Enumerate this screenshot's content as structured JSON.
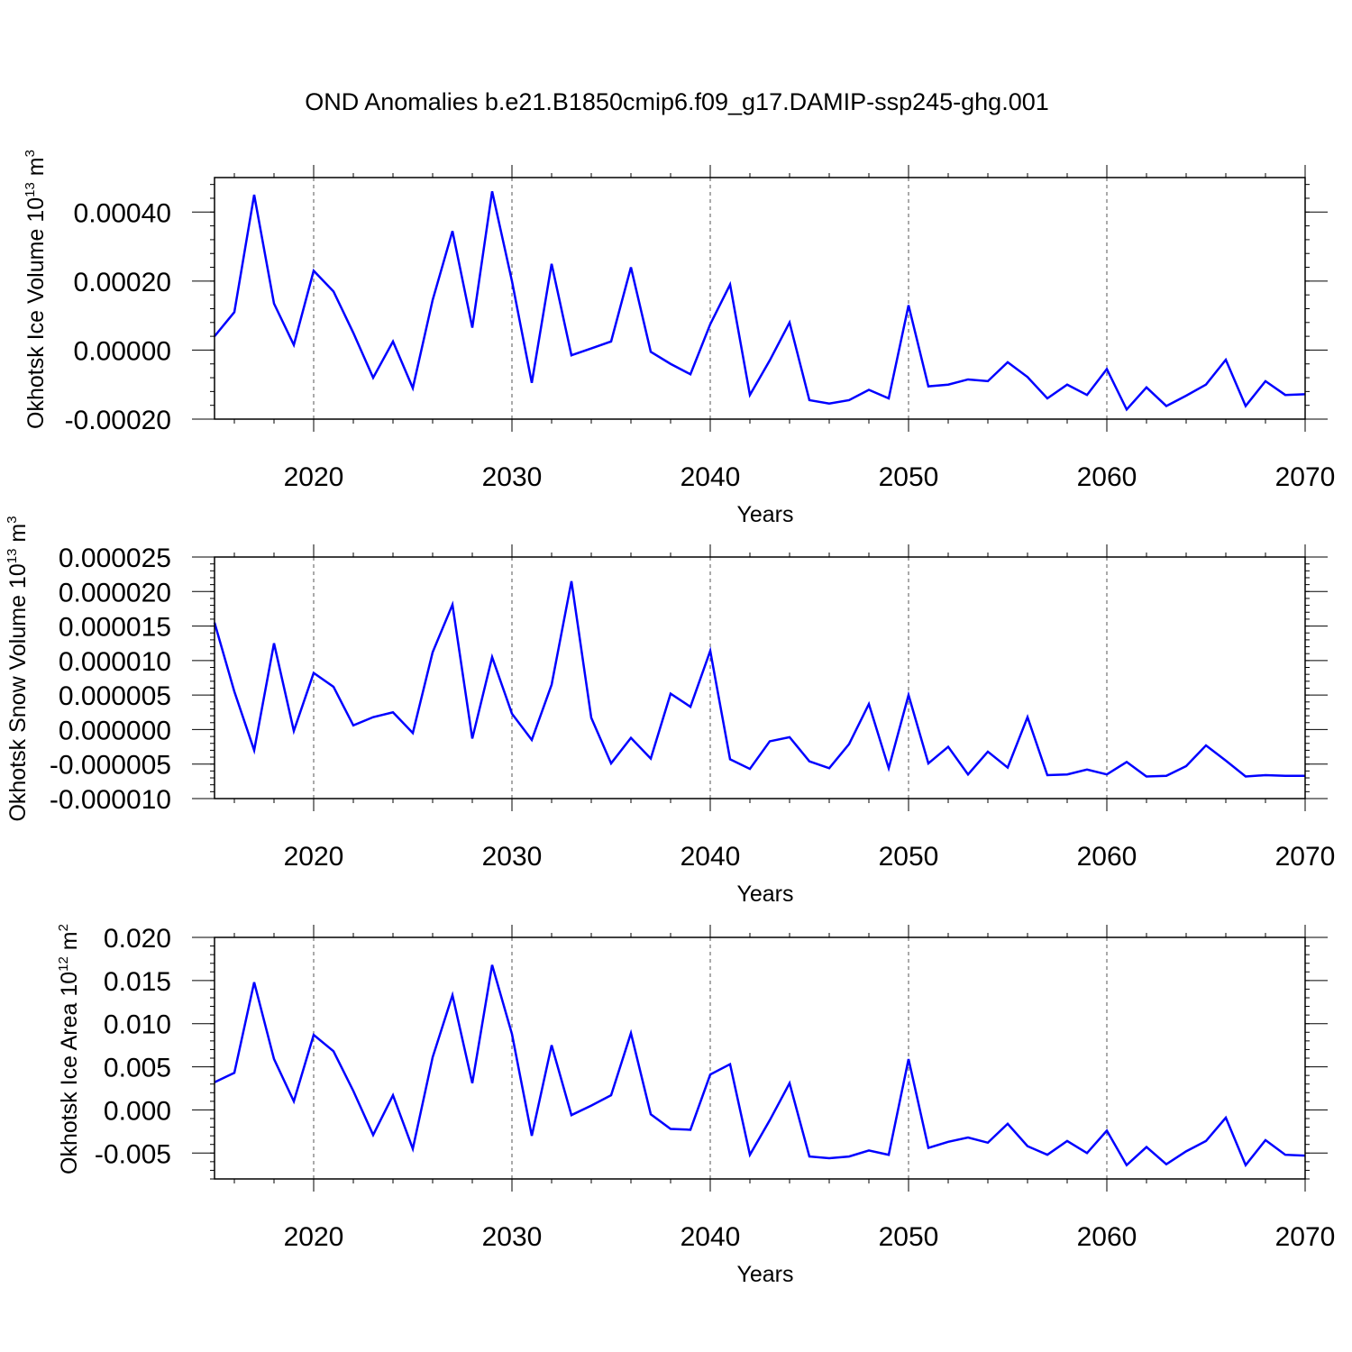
{
  "title": "OND Anomalies b.e21.B1850cmip6.f09_g17.DAMIP-ssp245-ghg.001",
  "colors": {
    "series": "#0000ff",
    "grid": "#555555"
  },
  "chart_data": [
    {
      "type": "line",
      "title": "",
      "xlabel": "Years",
      "ylabel": "Okhotsk Ice Volume 10",
      "ylabel_exp": "13",
      "ylabel_unit": " m",
      "ylabel_unit_exp": "3",
      "xlim": [
        2015,
        2070
      ],
      "ylim": [
        -0.0002,
        0.0005
      ],
      "x_ticks": [
        2020,
        2030,
        2040,
        2050,
        2060,
        2070
      ],
      "x_tick_labels": [
        "2020",
        "2030",
        "2040",
        "2050",
        "2060",
        "2070"
      ],
      "y_ticks": [
        -0.0002,
        0.0,
        0.0002,
        0.0004
      ],
      "y_tick_labels": [
        "-0.00020",
        "0.00000",
        "0.00020",
        "0.00040"
      ],
      "grid": "vertical dashed at major x ticks",
      "series": [
        {
          "name": "Okhotsk Ice Volume",
          "x": [
            2015,
            2016,
            2017,
            2018,
            2019,
            2020,
            2021,
            2022,
            2023,
            2024,
            2025,
            2026,
            2027,
            2028,
            2029,
            2030,
            2031,
            2032,
            2033,
            2034,
            2035,
            2036,
            2037,
            2038,
            2039,
            2040,
            2041,
            2042,
            2043,
            2044,
            2045,
            2046,
            2047,
            2048,
            2049,
            2050,
            2051,
            2052,
            2053,
            2054,
            2055,
            2056,
            2057,
            2058,
            2059,
            2060,
            2061,
            2062,
            2063,
            2064,
            2065,
            2066,
            2067,
            2068,
            2069,
            2070
          ],
          "values": [
            4e-05,
            0.00011,
            0.00045,
            0.000135,
            1.5e-05,
            0.00023,
            0.00017,
            5e-05,
            -8e-05,
            2.5e-05,
            -0.00011,
            0.000145,
            0.000345,
            6.5e-05,
            0.00046,
            0.0002,
            -9.5e-05,
            0.00025,
            -1.5e-05,
            5e-06,
            2.5e-05,
            0.00024,
            -5e-06,
            -4e-05,
            -7e-05,
            7.5e-05,
            0.00019,
            -0.00013,
            -3e-05,
            8e-05,
            -0.000145,
            -0.000155,
            -0.000145,
            -0.000115,
            -0.00014,
            0.00013,
            -0.000105,
            -0.0001,
            -8.5e-05,
            -9e-05,
            -3.5e-05,
            -7.8e-05,
            -0.00014,
            -0.0001,
            -0.00013,
            -5.5e-05,
            -0.000172,
            -0.000108,
            -0.000162,
            -0.000132,
            -0.0001,
            -2.8e-05,
            -0.000162,
            -9e-05,
            -0.00013,
            -0.000128
          ]
        }
      ]
    },
    {
      "type": "line",
      "title": "",
      "xlabel": "Years",
      "ylabel": "Okhotsk Snow Volume 10",
      "ylabel_exp": "13",
      "ylabel_unit": " m",
      "ylabel_unit_exp": "3",
      "xlim": [
        2015,
        2070
      ],
      "ylim": [
        -1e-05,
        2.5e-05
      ],
      "x_ticks": [
        2020,
        2030,
        2040,
        2050,
        2060,
        2070
      ],
      "x_tick_labels": [
        "2020",
        "2030",
        "2040",
        "2050",
        "2060",
        "2070"
      ],
      "y_ticks": [
        -1e-05,
        -5e-06,
        0.0,
        5e-06,
        1e-05,
        1.5e-05,
        2e-05,
        2.5e-05
      ],
      "y_tick_labels": [
        "-0.000010",
        "-0.000005",
        "0.000000",
        "0.000005",
        "0.000010",
        "0.000015",
        "0.000020",
        "0.000025"
      ],
      "grid": "vertical dashed at major x ticks",
      "series": [
        {
          "name": "Okhotsk Snow Volume",
          "x": [
            2015,
            2016,
            2017,
            2018,
            2019,
            2020,
            2021,
            2022,
            2023,
            2024,
            2025,
            2026,
            2027,
            2028,
            2029,
            2030,
            2031,
            2032,
            2033,
            2034,
            2035,
            2036,
            2037,
            2038,
            2039,
            2040,
            2041,
            2042,
            2043,
            2044,
            2045,
            2046,
            2047,
            2048,
            2049,
            2050,
            2051,
            2052,
            2053,
            2054,
            2055,
            2056,
            2057,
            2058,
            2059,
            2060,
            2061,
            2062,
            2063,
            2064,
            2065,
            2066,
            2067,
            2068,
            2069,
            2070
          ],
          "values": [
            1.55e-05,
            5.5e-06,
            -3e-06,
            1.25e-05,
            -2e-07,
            8.2e-06,
            6.2e-06,
            6e-07,
            1.8e-06,
            2.5e-06,
            -5e-07,
            1.12e-05,
            1.81e-05,
            -1.3e-06,
            1.05e-05,
            2.3e-06,
            -1.5e-06,
            6.5e-06,
            2.15e-05,
            1.7e-06,
            -4.9e-06,
            -1.2e-06,
            -4.2e-06,
            5.2e-06,
            3.3e-06,
            1.14e-05,
            -4.3e-06,
            -5.7e-06,
            -1.7e-06,
            -1.1e-06,
            -4.6e-06,
            -5.6e-06,
            -2.1e-06,
            3.7e-06,
            -5.6e-06,
            5e-06,
            -4.9e-06,
            -2.5e-06,
            -6.5e-06,
            -3.2e-06,
            -5.5e-06,
            1.8e-06,
            -6.6e-06,
            -6.5e-06,
            -5.8e-06,
            -6.5e-06,
            -4.7e-06,
            -6.8e-06,
            -6.7e-06,
            -5.3e-06,
            -2.3e-06,
            -4.5e-06,
            -6.8e-06,
            -6.6e-06,
            -6.7e-06,
            -6.7e-06
          ]
        }
      ]
    },
    {
      "type": "line",
      "title": "",
      "xlabel": "Years",
      "ylabel": "Okhotsk Ice Area 10",
      "ylabel_exp": "12",
      "ylabel_unit": " m",
      "ylabel_unit_exp": "2",
      "xlim": [
        2015,
        2070
      ],
      "ylim": [
        -0.008,
        0.02
      ],
      "x_ticks": [
        2020,
        2030,
        2040,
        2050,
        2060,
        2070
      ],
      "x_tick_labels": [
        "2020",
        "2030",
        "2040",
        "2050",
        "2060",
        "2070"
      ],
      "y_ticks": [
        -0.005,
        0.0,
        0.005,
        0.01,
        0.015,
        0.02
      ],
      "y_tick_labels": [
        "-0.005",
        "0.000",
        "0.005",
        "0.010",
        "0.015",
        "0.020"
      ],
      "grid": "vertical dashed at major x ticks",
      "series": [
        {
          "name": "Okhotsk Ice Area",
          "x": [
            2015,
            2016,
            2017,
            2018,
            2019,
            2020,
            2021,
            2022,
            2023,
            2024,
            2025,
            2026,
            2027,
            2028,
            2029,
            2030,
            2031,
            2032,
            2033,
            2034,
            2035,
            2036,
            2037,
            2038,
            2039,
            2040,
            2041,
            2042,
            2043,
            2044,
            2045,
            2046,
            2047,
            2048,
            2049,
            2050,
            2051,
            2052,
            2053,
            2054,
            2055,
            2056,
            2057,
            2058,
            2059,
            2060,
            2061,
            2062,
            2063,
            2064,
            2065,
            2066,
            2067,
            2068,
            2069,
            2070
          ],
          "values": [
            0.0032,
            0.0043,
            0.0148,
            0.0059,
            0.001,
            0.0087,
            0.0068,
            0.0022,
            -0.0029,
            0.0017,
            -0.0045,
            0.0061,
            0.0133,
            0.0031,
            0.0168,
            0.0088,
            -0.003,
            0.0075,
            -0.0006,
            0.0005,
            0.0017,
            0.0089,
            -0.0005,
            -0.0022,
            -0.0023,
            0.0041,
            0.0053,
            -0.0052,
            -0.0012,
            0.0031,
            -0.0054,
            -0.0056,
            -0.0054,
            -0.0047,
            -0.0052,
            0.0059,
            -0.0044,
            -0.0037,
            -0.0032,
            -0.0038,
            -0.0016,
            -0.0042,
            -0.0052,
            -0.0036,
            -0.005,
            -0.0024,
            -0.0064,
            -0.0043,
            -0.0063,
            -0.0048,
            -0.0036,
            -0.0009,
            -0.0064,
            -0.0035,
            -0.0052,
            -0.0053
          ]
        }
      ]
    }
  ]
}
